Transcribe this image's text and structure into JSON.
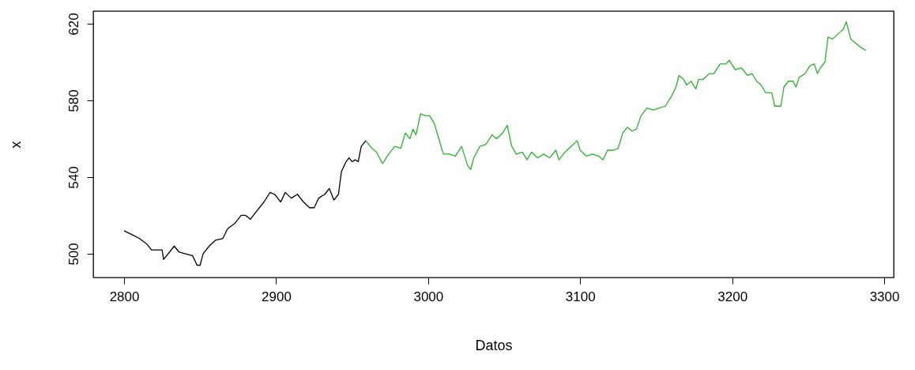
{
  "chart_data": {
    "type": "line",
    "xlabel": "Datos",
    "ylabel": "x",
    "xlim": [
      2779.7,
      3306.2
    ],
    "ylim": [
      487.6,
      626.6
    ],
    "xticks": [
      2800,
      2900,
      3000,
      3100,
      3200,
      3300
    ],
    "yticks": [
      500,
      540,
      580,
      620
    ],
    "grid": false,
    "line_style": "solid",
    "marker": "none",
    "series": [
      {
        "color": "#000000",
        "x": [
          2800,
          2805,
          2810,
          2815,
          2818,
          2825,
          2826,
          2830,
          2833,
          2836,
          2840,
          2845,
          2848,
          2850,
          2852,
          2856,
          2860,
          2865,
          2868,
          2873,
          2877,
          2880,
          2883,
          2887,
          2892,
          2896,
          2899,
          2900,
          2903,
          2906,
          2910,
          2914,
          2918,
          2922,
          2925,
          2928,
          2932,
          2935,
          2938,
          2941,
          2943,
          2946,
          2948,
          2950,
          2952,
          2954,
          2956,
          2959
        ],
        "values": [
          512,
          510,
          508,
          505,
          502,
          502,
          497,
          501,
          504,
          501,
          500,
          499,
          494,
          494,
          500,
          504,
          507,
          508,
          513,
          516,
          520,
          520,
          518,
          522,
          527,
          532,
          531,
          530,
          527,
          532,
          529,
          531,
          527,
          524,
          524,
          529,
          531,
          534,
          528,
          531,
          543,
          548,
          550,
          548,
          549,
          548,
          556,
          559
        ]
      },
      {
        "color": "#28b428",
        "x": [
          2959,
          2963,
          2966,
          2970,
          2974,
          2978,
          2982,
          2985,
          2988,
          2990,
          2992,
          2995,
          2998,
          3001,
          3004,
          3007,
          3010,
          3014,
          3018,
          3022,
          3026,
          3028,
          3030,
          3034,
          3038,
          3042,
          3045,
          3049,
          3052,
          3055,
          3058,
          3062,
          3065,
          3068,
          3072,
          3076,
          3080,
          3084,
          3086,
          3090,
          3094,
          3098,
          3100,
          3104,
          3108,
          3112,
          3115,
          3118,
          3122,
          3125,
          3128,
          3131,
          3134,
          3137,
          3140,
          3144,
          3148,
          3152,
          3156,
          3160,
          3163,
          3165,
          3168,
          3170,
          3173,
          3176,
          3178,
          3181,
          3185,
          3188,
          3192,
          3196,
          3198,
          3202,
          3206,
          3210,
          3213,
          3216,
          3219,
          3222,
          3226,
          3228,
          3232,
          3234,
          3237,
          3240,
          3242,
          3244,
          3248,
          3251,
          3254,
          3256,
          3258,
          3261,
          3263,
          3266,
          3270,
          3273,
          3275,
          3278,
          3281,
          3284,
          3288
        ],
        "values": [
          559,
          555,
          553,
          547,
          552,
          556,
          555,
          563,
          560,
          565,
          562,
          573,
          572,
          572,
          568,
          560,
          552,
          552,
          551,
          556,
          546,
          544,
          550,
          556,
          557,
          562,
          560,
          563,
          567,
          556,
          552,
          553,
          549,
          553,
          550,
          552,
          550,
          554,
          549,
          553,
          556,
          559,
          554,
          551,
          552,
          551,
          549,
          554,
          554,
          555,
          563,
          566,
          564,
          565,
          572,
          576,
          575,
          576,
          577,
          582,
          587,
          593,
          591,
          588,
          590,
          586,
          591,
          591,
          594,
          594,
          599,
          599,
          601,
          596,
          597,
          593,
          594,
          590,
          588,
          584,
          584,
          577,
          577,
          587,
          590,
          590,
          587,
          592,
          594,
          598,
          599,
          594,
          597,
          600,
          613,
          612,
          615,
          617,
          621,
          612,
          610,
          608,
          606
        ]
      }
    ]
  }
}
